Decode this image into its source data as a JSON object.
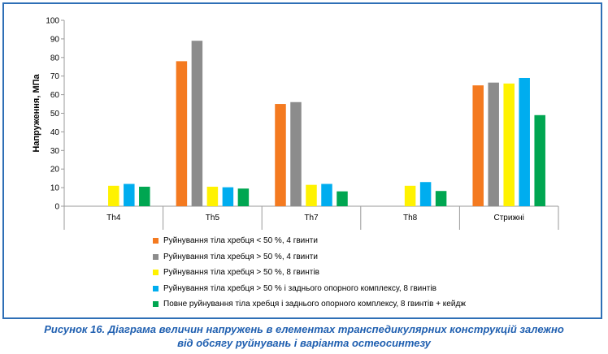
{
  "chart_data": {
    "type": "bar",
    "ylabel": "Напруження, МПа",
    "ylim": [
      0,
      100
    ],
    "yticks": [
      0,
      10,
      20,
      30,
      40,
      50,
      60,
      70,
      80,
      90,
      100
    ],
    "categories": [
      "Th4",
      "Th5",
      "Th7",
      "Th8",
      "Стрижні"
    ],
    "series": [
      {
        "name": "Руйнування тіла хребця < 50 %, 4 гвинти",
        "color": "#f47a20",
        "values": [
          null,
          78,
          55,
          null,
          65
        ]
      },
      {
        "name": "Руйнування тіла хребця > 50 %, 4 гвинти",
        "color": "#8c8c8c",
        "values": [
          null,
          89,
          56,
          null,
          66.5
        ]
      },
      {
        "name": "Руйнування тіла хребця > 50 %, 8 гвинтів",
        "color": "#fff200",
        "values": [
          11,
          10.5,
          11.5,
          11,
          66
        ]
      },
      {
        "name": "Руйнування тіла хребця > 50 % і заднього опорного комплексу, 8 гвинтів",
        "color": "#00adef",
        "values": [
          12,
          10.2,
          12,
          13,
          69
        ]
      },
      {
        "name": "Повне руйнування тіла хребця і заднього опорного комплексу, 8 гвинтів + кейдж",
        "color": "#00a651",
        "values": [
          10.5,
          9.5,
          8,
          8.2,
          49
        ]
      }
    ],
    "grid": false,
    "legend_position": "bottom"
  },
  "caption": {
    "line1": "Рисунок 16. Діаграма величин напружень в елементах транспедикулярних конструкцій залежно",
    "line2": "від обсягу руйнувань і варіанта остеосинтезу"
  },
  "colors": {
    "frame": "#2e6fb6",
    "caption": "#1f5fb0"
  }
}
